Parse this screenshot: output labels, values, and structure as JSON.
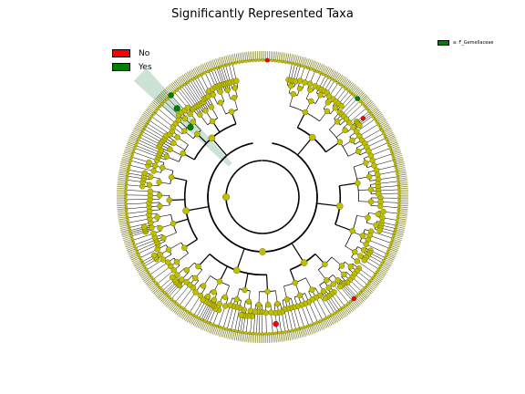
{
  "title": "Significantly Represented Taxa",
  "legend": {
    "items": [
      {
        "label": "No",
        "color": "#ff0000"
      },
      {
        "label": "Yes",
        "color": "#008000"
      }
    ]
  },
  "clade_legend": {
    "label": "a: F_Gemellaceae",
    "color": "#008000"
  },
  "cladogram": {
    "node_color": "#bfbf00",
    "highlight_color": "#2e8b57",
    "leaf_count": 520
  }
}
